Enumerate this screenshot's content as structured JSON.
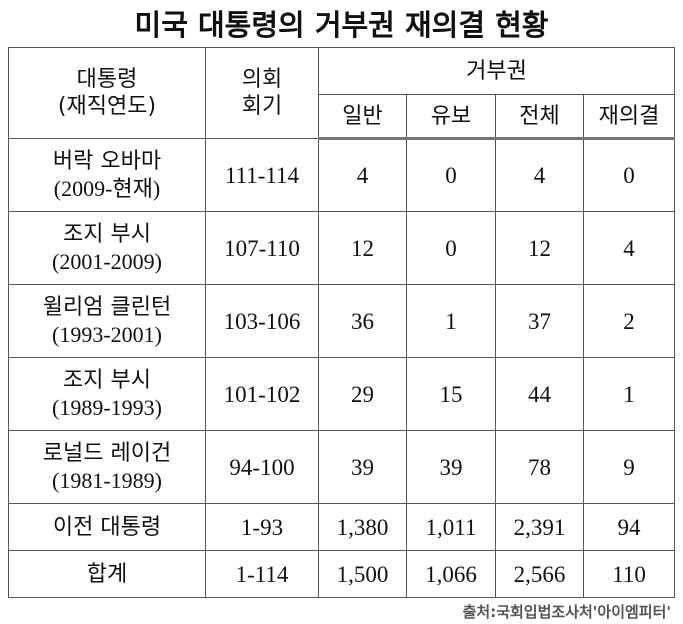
{
  "title": "미국 대통령의 거부권 재의결 현황",
  "header": {
    "president": "대통령",
    "term": "(재직연도)",
    "congress_1": "의회",
    "congress_2": "회기",
    "veto": "거부권",
    "regular": "일반",
    "pocket": "유보",
    "total": "전체",
    "override": "재의결"
  },
  "rows": [
    {
      "name": "버락 오바마",
      "years": "(2009-현재)",
      "congress": "111-114",
      "regular": "4",
      "pocket": "0",
      "total": "4",
      "override": "0"
    },
    {
      "name": "조지 부시",
      "years": "(2001-2009)",
      "congress": "107-110",
      "regular": "12",
      "pocket": "0",
      "total": "12",
      "override": "4"
    },
    {
      "name": "윌리엄 클린턴",
      "years": "(1993-2001)",
      "congress": "103-106",
      "regular": "36",
      "pocket": "1",
      "total": "37",
      "override": "2"
    },
    {
      "name": "조지 부시",
      "years": "(1989-1993)",
      "congress": "101-102",
      "regular": "29",
      "pocket": "15",
      "total": "44",
      "override": "1"
    },
    {
      "name": "로널드 레이건",
      "years": "(1981-1989)",
      "congress": "94-100",
      "regular": "39",
      "pocket": "39",
      "total": "78",
      "override": "9"
    },
    {
      "name": "이전 대통령",
      "congress": "1-93",
      "regular": "1,380",
      "pocket": "1,011",
      "total": "2,391",
      "override": "94"
    },
    {
      "name": "합계",
      "congress": "1-114",
      "regular": "1,500",
      "pocket": "1,066",
      "total": "2,566",
      "override": "110"
    }
  ],
  "source": "출처:국회입법조사처'아이엠피터'"
}
